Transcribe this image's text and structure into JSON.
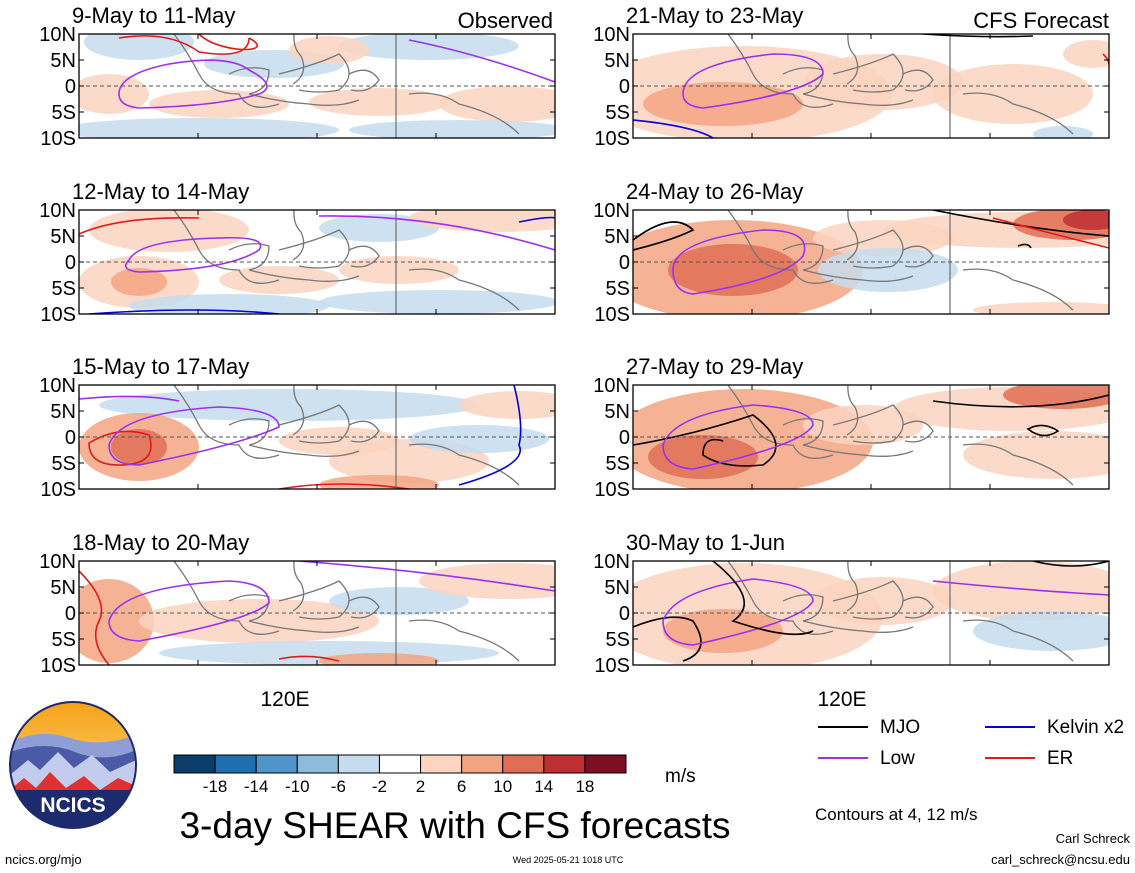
{
  "figure": {
    "title": "3-day SHEAR with CFS forecasts",
    "observed_label": "Observed",
    "forecast_label": "CFS Forecast",
    "website": "ncics.org/mjo",
    "timestamp": "Wed 2025-05-21 1018 UTC",
    "author": "Carl Schreck",
    "email": "carl_schreck@ncsu.edu",
    "logo_text": "NCICS",
    "units": "m/s",
    "contour_note": "Contours at 4, 12 m/s",
    "x_tick_label": "120E",
    "lat_labels": [
      "10N",
      "5N",
      "0",
      "5S",
      "10S"
    ]
  },
  "colorbar": {
    "ticks": [
      "-18",
      "-14",
      "-10",
      "-6",
      "-2",
      "2",
      "6",
      "10",
      "14",
      "18"
    ],
    "colors": [
      "#0a3d6b",
      "#1f6fb0",
      "#4f95c9",
      "#8cbcdc",
      "#c6dcee",
      "#ffffff",
      "#fcd4bf",
      "#f3a583",
      "#df6e55",
      "#bf2e33",
      "#7d0e24"
    ]
  },
  "legend": [
    {
      "label": "MJO",
      "color": "#000000"
    },
    {
      "label": "Kelvin x2",
      "color": "#0000dd"
    },
    {
      "label": "Low",
      "color": "#9b30f0"
    },
    {
      "label": "ER",
      "color": "#e01b1b"
    }
  ],
  "chart_data": [
    {
      "type": "heatmap",
      "title": "9-May to 11-May",
      "group": "Observed",
      "ylim": [
        -10,
        10
      ],
      "contours": [
        "Low",
        "ER"
      ]
    },
    {
      "type": "heatmap",
      "title": "12-May to 14-May",
      "group": "Observed",
      "ylim": [
        -10,
        10
      ],
      "contours": [
        "Low",
        "ER",
        "Kelvin x2"
      ]
    },
    {
      "type": "heatmap",
      "title": "15-May to 17-May",
      "group": "Observed",
      "ylim": [
        -10,
        10
      ],
      "contours": [
        "Low",
        "ER",
        "Kelvin x2"
      ]
    },
    {
      "type": "heatmap",
      "title": "18-May to 20-May",
      "group": "Observed",
      "ylim": [
        -10,
        10
      ],
      "contours": [
        "Low",
        "ER"
      ]
    },
    {
      "type": "heatmap",
      "title": "21-May to 23-May",
      "group": "CFS Forecast",
      "ylim": [
        -10,
        10
      ],
      "contours": [
        "Low",
        "MJO",
        "Kelvin x2"
      ]
    },
    {
      "type": "heatmap",
      "title": "24-May to 26-May",
      "group": "CFS Forecast",
      "ylim": [
        -10,
        10
      ],
      "contours": [
        "Low",
        "MJO",
        "ER"
      ]
    },
    {
      "type": "heatmap",
      "title": "27-May to 29-May",
      "group": "CFS Forecast",
      "ylim": [
        -10,
        10
      ],
      "contours": [
        "Low",
        "MJO"
      ]
    },
    {
      "type": "heatmap",
      "title": "30-May to 1-Jun",
      "group": "CFS Forecast",
      "ylim": [
        -10,
        10
      ],
      "contours": [
        "Low",
        "MJO"
      ]
    }
  ]
}
